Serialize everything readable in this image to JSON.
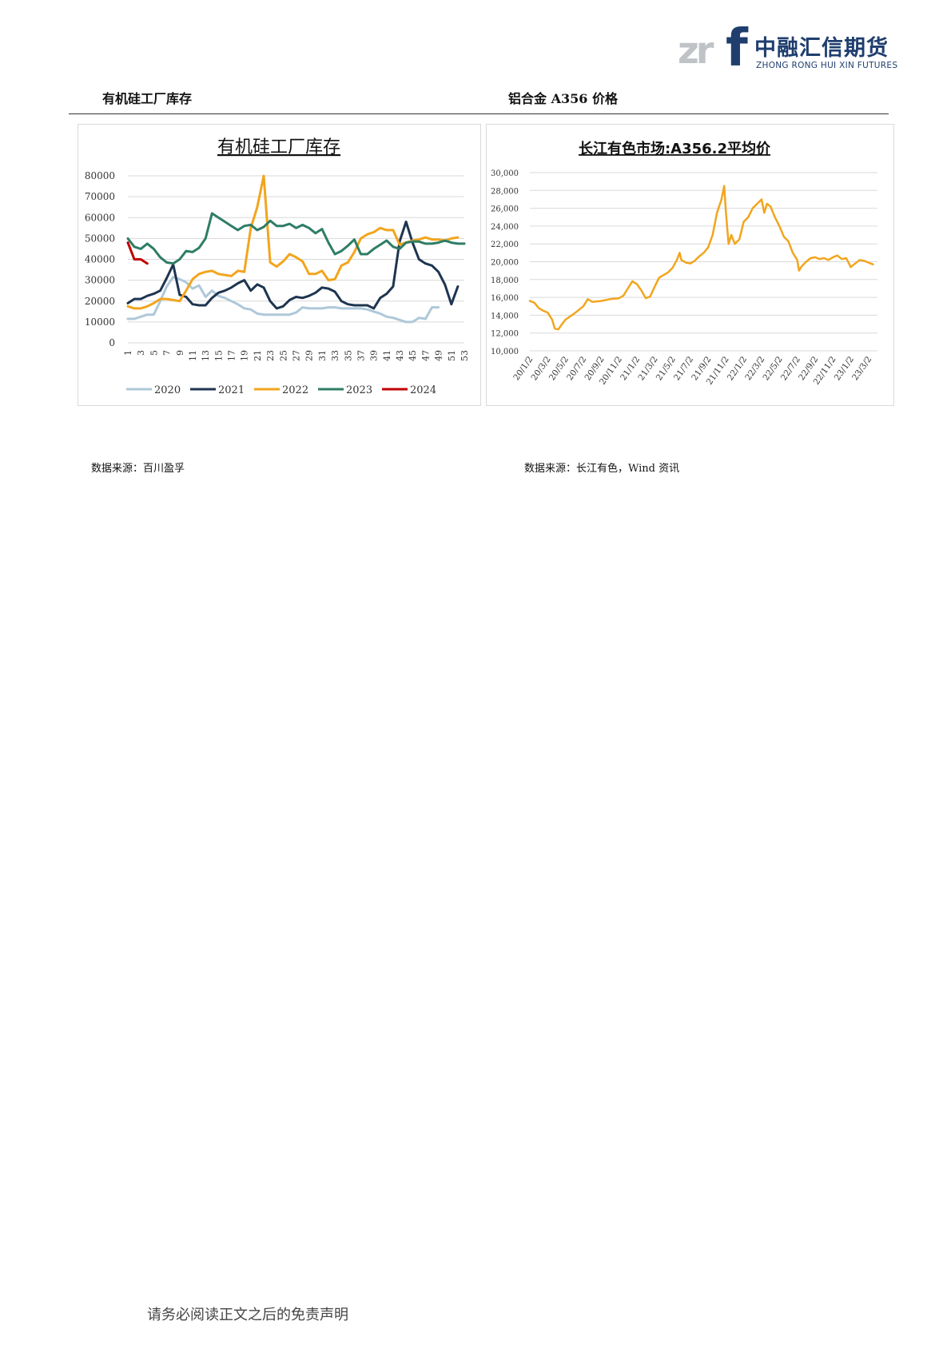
{
  "logo": {
    "mark_left": "zr",
    "mark_right": "f",
    "name_cn": "中融汇信期货",
    "name_en": "ZHONG RONG HUI XIN FUTURES"
  },
  "sections": {
    "left_title": "有机硅工厂库存",
    "right_title": "铝合金 A356 价格"
  },
  "sources": {
    "left": "数据来源：百川盈孚",
    "right": "数据来源：长江有色，Wind 资讯"
  },
  "footer": "请务必阅读正文之后的免责声明",
  "chart_data": [
    {
      "type": "line",
      "title": "有机硅工厂库存",
      "ylim": [
        0,
        80000
      ],
      "yticks": [
        "80000",
        "70000",
        "60000",
        "50000",
        "40000",
        "30000",
        "20000",
        "10000",
        "0"
      ],
      "xticks": [
        "1",
        "3",
        "5",
        "7",
        "9",
        "11",
        "13",
        "15",
        "17",
        "19",
        "21",
        "23",
        "25",
        "27",
        "29",
        "31",
        "33",
        "35",
        "37",
        "39",
        "41",
        "43",
        "45",
        "47",
        "49",
        "51",
        "53"
      ],
      "x_max": 53,
      "legend_position": "bottom",
      "grid": true,
      "series": [
        {
          "name": "2020",
          "color": "#aec8d9",
          "values": [
            11500,
            11500,
            12500,
            13500,
            13500,
            20000,
            27000,
            31500,
            30500,
            29000,
            26000,
            27500,
            22000,
            25000,
            22500,
            21500,
            20000,
            18500,
            16500,
            16000,
            14000,
            13500,
            13500,
            13500,
            13500,
            13500,
            14500,
            17000,
            16500,
            16500,
            16500,
            17000,
            17000,
            16500,
            16500,
            16500,
            16500,
            16000,
            15000,
            14000,
            12500,
            12000,
            11000,
            10000,
            10000,
            12000,
            11500,
            17000,
            17000
          ]
        },
        {
          "name": "2021",
          "color": "#1e3550",
          "values": [
            19000,
            21000,
            21000,
            22500,
            23500,
            25000,
            31000,
            37500,
            23000,
            22000,
            18500,
            18000,
            18000,
            21500,
            24000,
            25000,
            26500,
            28500,
            30000,
            25000,
            28000,
            26500,
            20000,
            16500,
            17500,
            20500,
            22000,
            21500,
            22500,
            24000,
            26500,
            26000,
            24500,
            20000,
            18500,
            18000,
            18000,
            18000,
            16500,
            21500,
            23500,
            27000,
            48500,
            58000,
            48000,
            40000,
            38000,
            37000,
            34000,
            28000,
            18500,
            27000
          ]
        },
        {
          "name": "2022",
          "color": "#f2a51d",
          "values": [
            17500,
            16500,
            16500,
            17500,
            19000,
            21000,
            21000,
            20500,
            20000,
            25000,
            30500,
            33000,
            34000,
            34500,
            33000,
            32500,
            32000,
            34500,
            34000,
            55000,
            65000,
            80000,
            38500,
            36500,
            39000,
            42500,
            41000,
            39000,
            33000,
            33000,
            34500,
            30000,
            30500,
            37000,
            38500,
            43500,
            50000,
            52000,
            53000,
            55000,
            54000,
            54000,
            47000,
            48000,
            49000,
            49500,
            50500,
            49500,
            49500,
            49000,
            50000,
            50500
          ]
        },
        {
          "name": "2023",
          "color": "#2e7d66",
          "values": [
            50000,
            46000,
            45000,
            47500,
            45000,
            41000,
            38500,
            38000,
            40000,
            44000,
            43500,
            45500,
            50000,
            62000,
            60000,
            58000,
            56000,
            54000,
            56000,
            56500,
            54000,
            55500,
            58500,
            56000,
            56000,
            57000,
            55000,
            56500,
            55000,
            52500,
            54500,
            48000,
            42500,
            44000,
            46500,
            49500,
            42500,
            42500,
            45000,
            47000,
            49000,
            46000,
            45000,
            48000,
            48500,
            48500,
            47500,
            47500,
            48000,
            49000,
            48000,
            47500,
            47500
          ]
        },
        {
          "name": "2024",
          "color": "#c00000",
          "values": [
            48000,
            40000,
            40000,
            38000
          ]
        }
      ]
    },
    {
      "type": "line",
      "title": "长江有色市场:A356.2平均价",
      "ylim": [
        10000,
        30000
      ],
      "yticks": [
        "30,000",
        "28,000",
        "26,000",
        "24,000",
        "22,000",
        "20,000",
        "18,000",
        "16,000",
        "14,000",
        "12,000",
        "10,000"
      ],
      "xticks": [
        "20/1/2",
        "20/3/2",
        "20/5/2",
        "20/7/2",
        "20/9/2",
        "20/11/2",
        "21/1/2",
        "21/3/2",
        "21/5/2",
        "21/7/2",
        "21/9/2",
        "21/11/2",
        "22/1/2",
        "22/3/2",
        "22/5/2",
        "22/7/2",
        "22/9/2",
        "22/11/2",
        "23/1/2",
        "23/3/2"
      ],
      "x_months": [
        0,
        2,
        4,
        6,
        8,
        10,
        12,
        14,
        16,
        18,
        20,
        22,
        24,
        26,
        28,
        30,
        32,
        34,
        36,
        38
      ],
      "x_range": [
        0,
        39
      ],
      "grid": true,
      "series": [
        {
          "color": "#f2a51d",
          "points": [
            [
              0,
              15600
            ],
            [
              0.5,
              15400
            ],
            [
              1,
              14800
            ],
            [
              1.5,
              14500
            ],
            [
              2,
              14300
            ],
            [
              2.5,
              13500
            ],
            [
              2.8,
              12500
            ],
            [
              3.2,
              12400
            ],
            [
              3.6,
              13000
            ],
            [
              4,
              13500
            ],
            [
              5,
              14200
            ],
            [
              6,
              15000
            ],
            [
              6.5,
              15800
            ],
            [
              7,
              15500
            ],
            [
              8,
              15600
            ],
            [
              9,
              15800
            ],
            [
              10,
              15900
            ],
            [
              10.5,
              16200
            ],
            [
              11,
              17000
            ],
            [
              11.5,
              17800
            ],
            [
              12,
              17500
            ],
            [
              12.5,
              16800
            ],
            [
              13,
              15900
            ],
            [
              13.5,
              16100
            ],
            [
              14,
              17200
            ],
            [
              14.5,
              18200
            ],
            [
              15,
              18500
            ],
            [
              15.5,
              18800
            ],
            [
              16,
              19300
            ],
            [
              16.5,
              20200
            ],
            [
              16.8,
              21000
            ],
            [
              17,
              20200
            ],
            [
              17.5,
              19900
            ],
            [
              18,
              19800
            ],
            [
              18.5,
              20100
            ],
            [
              19,
              20600
            ],
            [
              19.5,
              21000
            ],
            [
              20,
              21600
            ],
            [
              20.5,
              23000
            ],
            [
              21,
              25500
            ],
            [
              21.5,
              27000
            ],
            [
              21.8,
              28500
            ],
            [
              22,
              25500
            ],
            [
              22.3,
              22000
            ],
            [
              22.6,
              23000
            ],
            [
              23,
              22000
            ],
            [
              23.5,
              22500
            ],
            [
              24,
              24500
            ],
            [
              24.5,
              25000
            ],
            [
              25,
              26000
            ],
            [
              25.5,
              26500
            ],
            [
              26,
              27000
            ],
            [
              26.3,
              25500
            ],
            [
              26.6,
              26500
            ],
            [
              27,
              26200
            ],
            [
              27.5,
              25000
            ],
            [
              28,
              24000
            ],
            [
              28.5,
              22800
            ],
            [
              29,
              22300
            ],
            [
              29.5,
              21000
            ],
            [
              30,
              20200
            ],
            [
              30.2,
              19000
            ],
            [
              30.5,
              19500
            ],
            [
              31,
              20000
            ],
            [
              31.5,
              20400
            ],
            [
              32,
              20500
            ],
            [
              32.5,
              20300
            ],
            [
              33,
              20400
            ],
            [
              33.5,
              20200
            ],
            [
              34,
              20500
            ],
            [
              34.5,
              20700
            ],
            [
              35,
              20300
            ],
            [
              35.5,
              20400
            ],
            [
              36,
              19400
            ],
            [
              36.5,
              19800
            ],
            [
              37,
              20200
            ],
            [
              37.5,
              20100
            ],
            [
              38,
              19900
            ],
            [
              38.5,
              19700
            ]
          ]
        }
      ]
    }
  ]
}
